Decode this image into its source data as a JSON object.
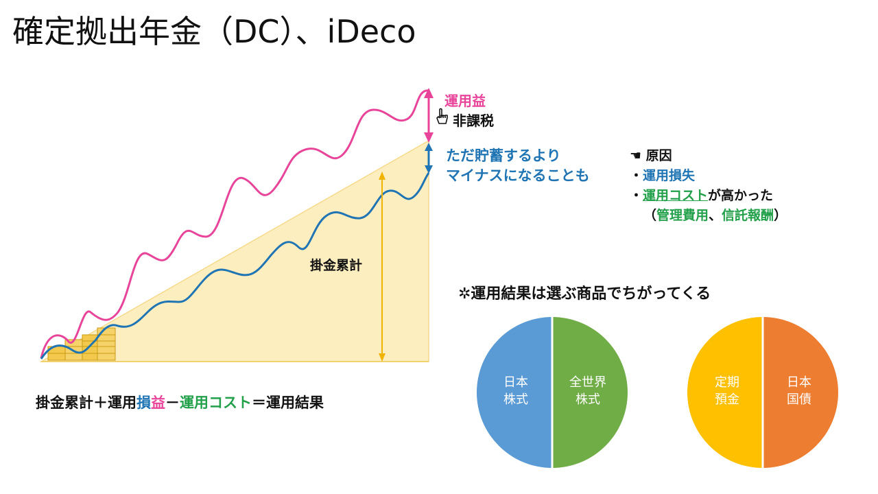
{
  "title": "確定拠出年金（DC）、iDeco",
  "growth": {
    "gain_label": "運用益",
    "tax_note": "非課税",
    "loss_note_line1": "ただ貯蓄するより",
    "loss_note_line2": "マイナスになることも",
    "contrib_label": "掛金累計"
  },
  "causes": {
    "header": "原因",
    "item1": "運用損失",
    "item2_link": "運用コスト",
    "item2_rest": "が高かった",
    "item3_open": "（",
    "item3_a": "管理費用",
    "item3_sep": "、",
    "item3_b": "信託報酬",
    "item3_close": "）",
    "bullet": "・"
  },
  "formula": {
    "part1": "掛金累計＋運用",
    "part2": "損",
    "part3": "益",
    "part4": "－",
    "part5": "運用コスト",
    "part6": "＝運用結果"
  },
  "note": "✲運用結果は選ぶ商品でちがってくる",
  "pies": [
    {
      "left_l1": "日本",
      "left_l2": "株式",
      "right_l1": "全世界",
      "right_l2": "株式",
      "left_color": "#5b9bd5",
      "right_color": "#70ad47"
    },
    {
      "left_l1": "定期",
      "left_l2": "預金",
      "right_l1": "日本",
      "right_l2": "国債",
      "left_color": "#ffc000",
      "right_color": "#ed7d31"
    }
  ],
  "colors": {
    "gain": "#e8449a",
    "result": "#1f74b4",
    "contrib_fill": "#fdeec0",
    "contrib_line": "#f0b400",
    "cost": "#22a04a"
  }
}
